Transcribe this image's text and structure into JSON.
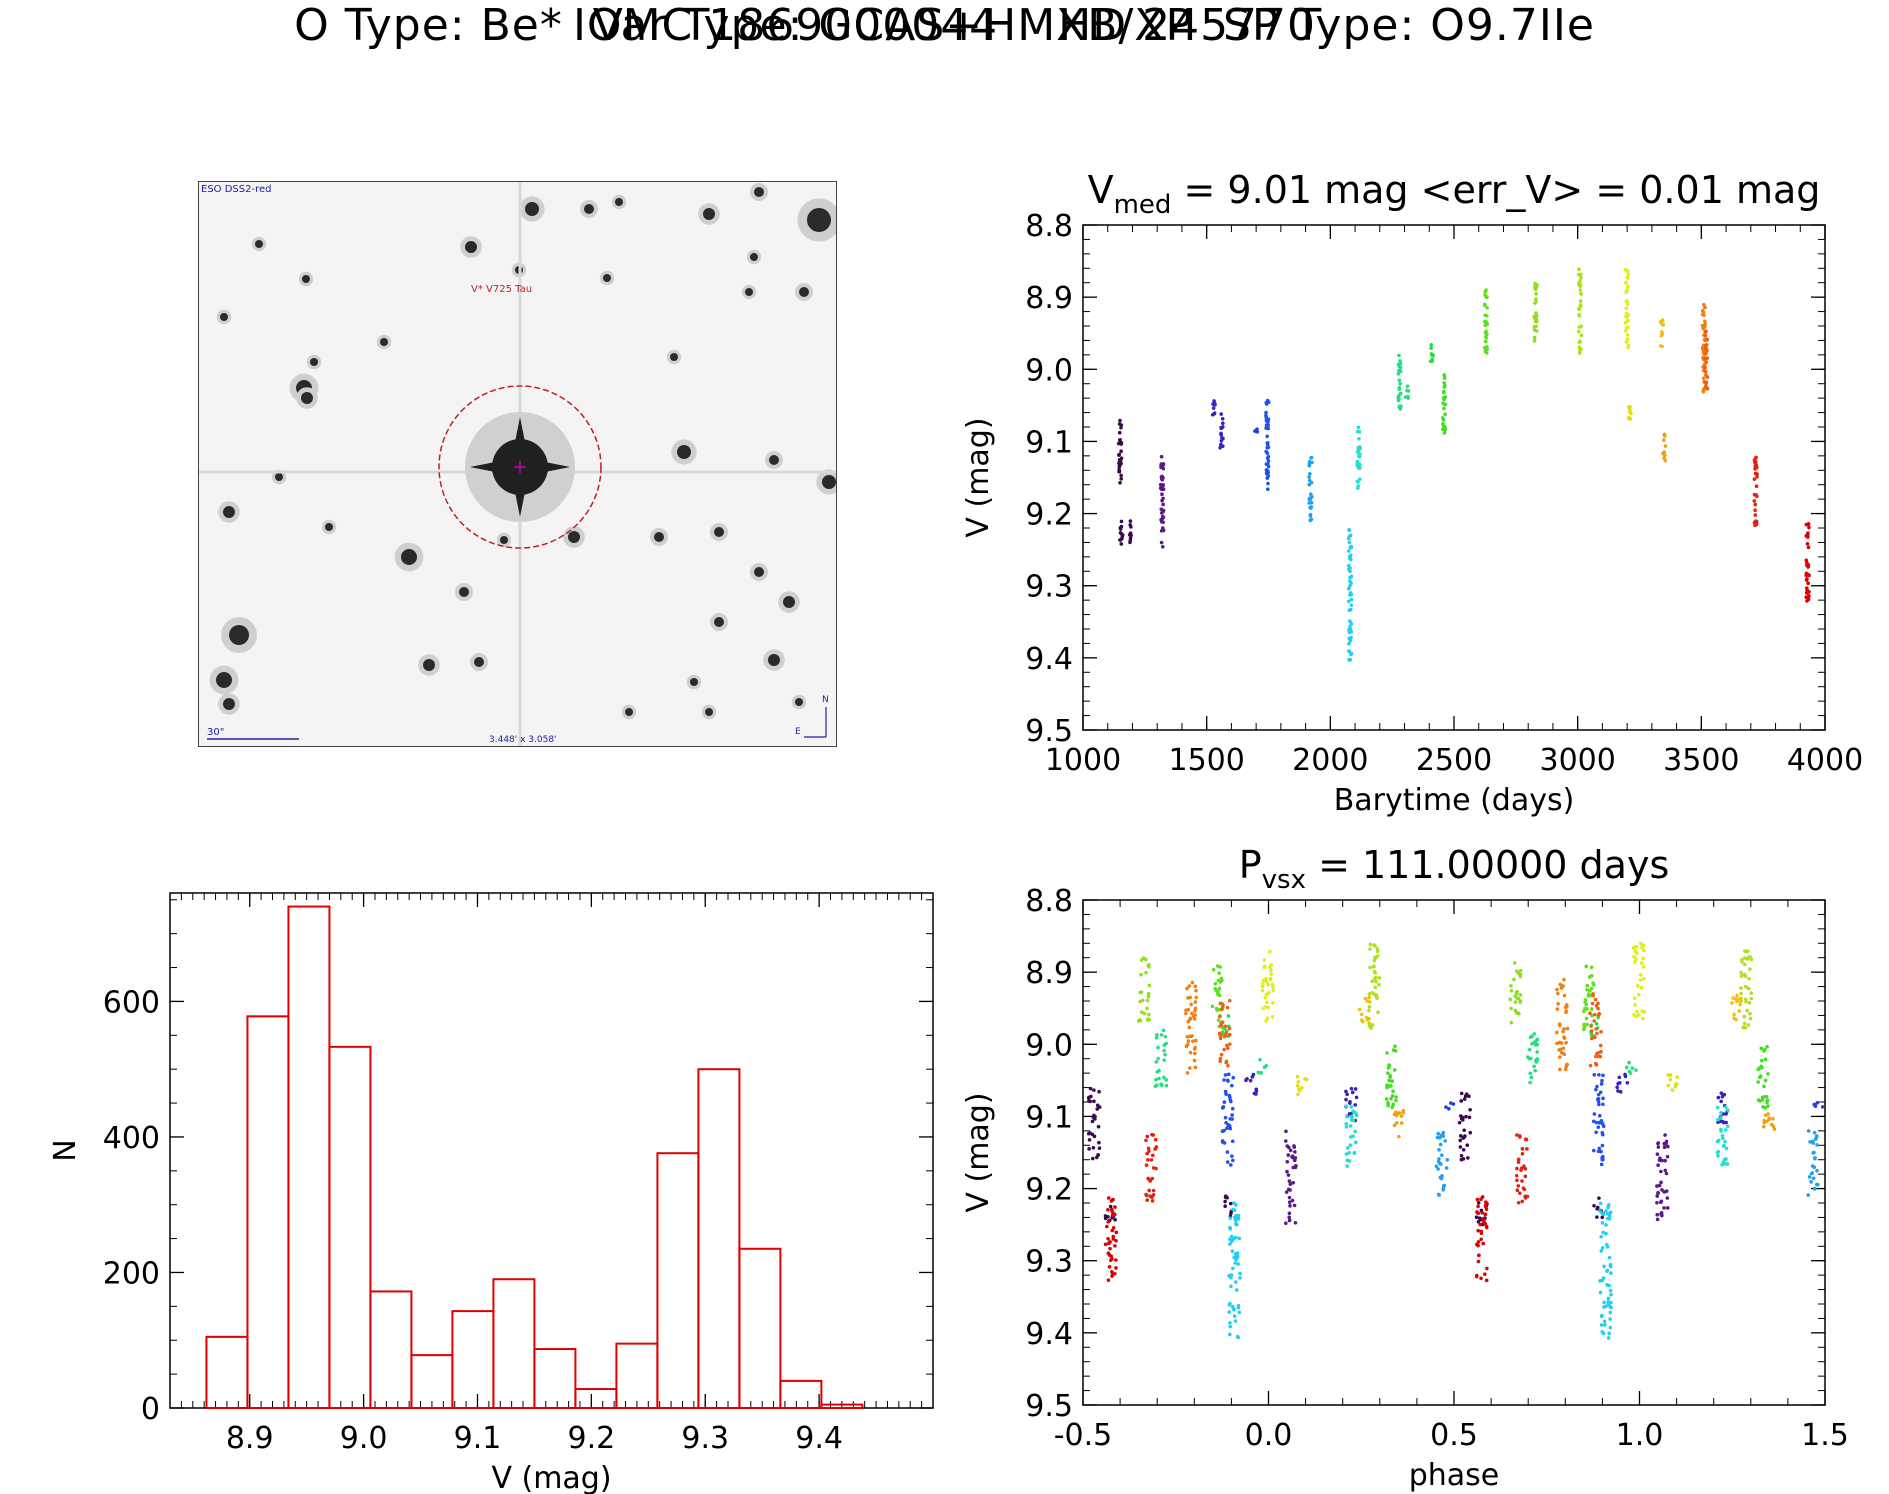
{
  "header": {
    "line1": "IOMC 1869000044    HD 245770",
    "line2": "O Type: Be*  Var Type: GCAS+HMXB/XP  SP Type: O9.7IIe"
  },
  "finder_chart": {
    "survey_label": "ESO DSS2-red",
    "target_label": "V* V725 Tau",
    "scale_label": "30\"",
    "fov_label": "3.448' x 3.058'",
    "north_label": "N",
    "east_label": "E"
  },
  "chart_data": [
    {
      "id": "lightcurve",
      "type": "scatter",
      "title_parts": [
        "V",
        "med",
        " = 9.01 mag <err_V> = 0.01 mag"
      ],
      "xlabel": "Barytime (days)",
      "ylabel": "V (mag)",
      "xlim": [
        1000,
        4000
      ],
      "ylim": [
        9.5,
        8.8
      ],
      "xticks": [
        "1000",
        "1500",
        "2000",
        "2500",
        "3000",
        "3500",
        "4000"
      ],
      "yticks": [
        "8.8",
        "8.9",
        "9.0",
        "9.1",
        "9.2",
        "9.3",
        "9.4",
        "9.5"
      ],
      "groups": [
        {
          "x": 1150,
          "ymin": 9.06,
          "ymax": 9.16,
          "color": "#3a0a4a"
        },
        {
          "x": 1155,
          "ymin": 9.21,
          "ymax": 9.25,
          "color": "#3a0a4a"
        },
        {
          "x": 1190,
          "ymin": 9.21,
          "ymax": 9.24,
          "color": "#3a0a4a"
        },
        {
          "x": 1320,
          "ymin": 9.12,
          "ymax": 9.25,
          "color": "#5a1a8a"
        },
        {
          "x": 1530,
          "ymin": 9.04,
          "ymax": 9.07,
          "color": "#3a20c0"
        },
        {
          "x": 1560,
          "ymin": 9.06,
          "ymax": 9.11,
          "color": "#3a20c0"
        },
        {
          "x": 1700,
          "ymin": 9.08,
          "ymax": 9.09,
          "color": "#2040e0"
        },
        {
          "x": 1745,
          "ymin": 9.04,
          "ymax": 9.17,
          "color": "#2050f0"
        },
        {
          "x": 1920,
          "ymin": 9.12,
          "ymax": 9.21,
          "color": "#20a0f0"
        },
        {
          "x": 2080,
          "ymin": 9.22,
          "ymax": 9.41,
          "color": "#20d0f0"
        },
        {
          "x": 2115,
          "ymin": 9.08,
          "ymax": 9.17,
          "color": "#20e0d0"
        },
        {
          "x": 2280,
          "ymin": 8.98,
          "ymax": 9.06,
          "color": "#20e080"
        },
        {
          "x": 2310,
          "ymin": 9.02,
          "ymax": 9.04,
          "color": "#20e080"
        },
        {
          "x": 2410,
          "ymin": 8.96,
          "ymax": 8.99,
          "color": "#20e040"
        },
        {
          "x": 2460,
          "ymin": 9.0,
          "ymax": 9.09,
          "color": "#40e020"
        },
        {
          "x": 2630,
          "ymin": 8.89,
          "ymax": 8.98,
          "color": "#60e020"
        },
        {
          "x": 2830,
          "ymin": 8.88,
          "ymax": 8.97,
          "color": "#90e020"
        },
        {
          "x": 3010,
          "ymin": 8.86,
          "ymax": 8.98,
          "color": "#b0e020"
        },
        {
          "x": 3200,
          "ymin": 8.86,
          "ymax": 8.97,
          "color": "#e0f010"
        },
        {
          "x": 3210,
          "ymin": 9.04,
          "ymax": 9.07,
          "color": "#e0e010"
        },
        {
          "x": 3340,
          "ymin": 8.93,
          "ymax": 8.97,
          "color": "#f0c010"
        },
        {
          "x": 3350,
          "ymin": 9.09,
          "ymax": 9.13,
          "color": "#f0a010"
        },
        {
          "x": 3510,
          "ymin": 8.91,
          "ymax": 9.04,
          "color": "#f08010"
        },
        {
          "x": 3520,
          "ymin": 8.93,
          "ymax": 9.03,
          "color": "#f06010"
        },
        {
          "x": 3720,
          "ymin": 9.12,
          "ymax": 9.22,
          "color": "#e82010"
        },
        {
          "x": 3930,
          "ymin": 9.21,
          "ymax": 9.33,
          "color": "#e00000"
        }
      ]
    },
    {
      "id": "histogram",
      "type": "bar",
      "xlabel": "V (mag)",
      "ylabel": "N",
      "xlim": [
        8.83,
        9.5
      ],
      "ylim": [
        0,
        760
      ],
      "xticks": [
        "8.9",
        "9.0",
        "9.1",
        "9.2",
        "9.3",
        "9.4"
      ],
      "yticks": [
        "0",
        "200",
        "400",
        "600"
      ],
      "bin_width": 0.036,
      "bin_starts": [
        8.862,
        8.898,
        8.934,
        8.97,
        9.006,
        9.042,
        9.078,
        9.114,
        9.15,
        9.186,
        9.222,
        9.258,
        9.294,
        9.33,
        9.366,
        9.402
      ],
      "values": [
        105,
        578,
        740,
        533,
        172,
        78,
        143,
        190,
        87,
        28,
        95,
        376,
        500,
        235,
        40,
        5
      ],
      "color": "#e00000"
    },
    {
      "id": "phased",
      "type": "scatter",
      "title_parts": [
        "P",
        "vsx",
        " = 111.00000 days"
      ],
      "xlabel": "phase",
      "ylabel": "V (mag)",
      "xlim": [
        -0.5,
        1.5
      ],
      "ylim": [
        9.5,
        8.8
      ],
      "xticks": [
        "-0.5",
        "0.0",
        "0.5",
        "1.0",
        "1.5"
      ],
      "yticks": [
        "8.8",
        "8.9",
        "9.0",
        "9.1",
        "9.2",
        "9.3",
        "9.4",
        "9.5"
      ],
      "period_days": 111.0
    }
  ]
}
